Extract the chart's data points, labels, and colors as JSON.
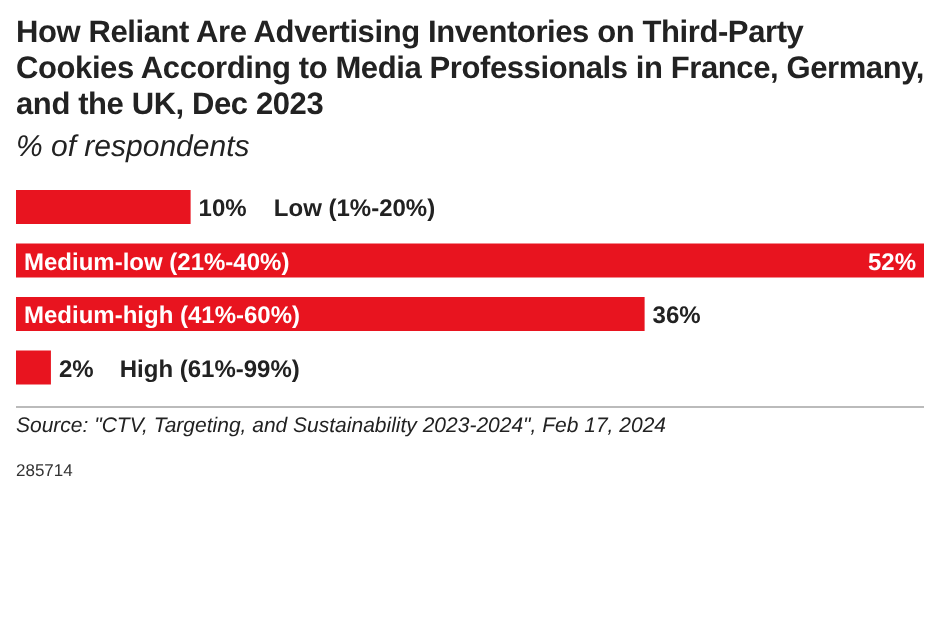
{
  "chart_data": {
    "type": "bar",
    "orientation": "horizontal",
    "title": "How Reliant Are Advertising Inventories on Third-Party Cookies According to Media Professionals in France, Germany, and the UK, Dec 2023",
    "subtitle": "% of respondents",
    "categories": [
      "Low (1%-20%)",
      "Medium-low (21%-40%)",
      "Medium-high (41%-60%)",
      "High (61%-99%)"
    ],
    "values": [
      10,
      52,
      36,
      2
    ],
    "value_labels": [
      "10%",
      "52%",
      "36%",
      "2%"
    ],
    "color": "#e8141f",
    "annotations": [
      "Source: \"CTV, Targeting, and Sustainability 2023-2024\", Feb 17, 2024",
      "285714"
    ]
  }
}
